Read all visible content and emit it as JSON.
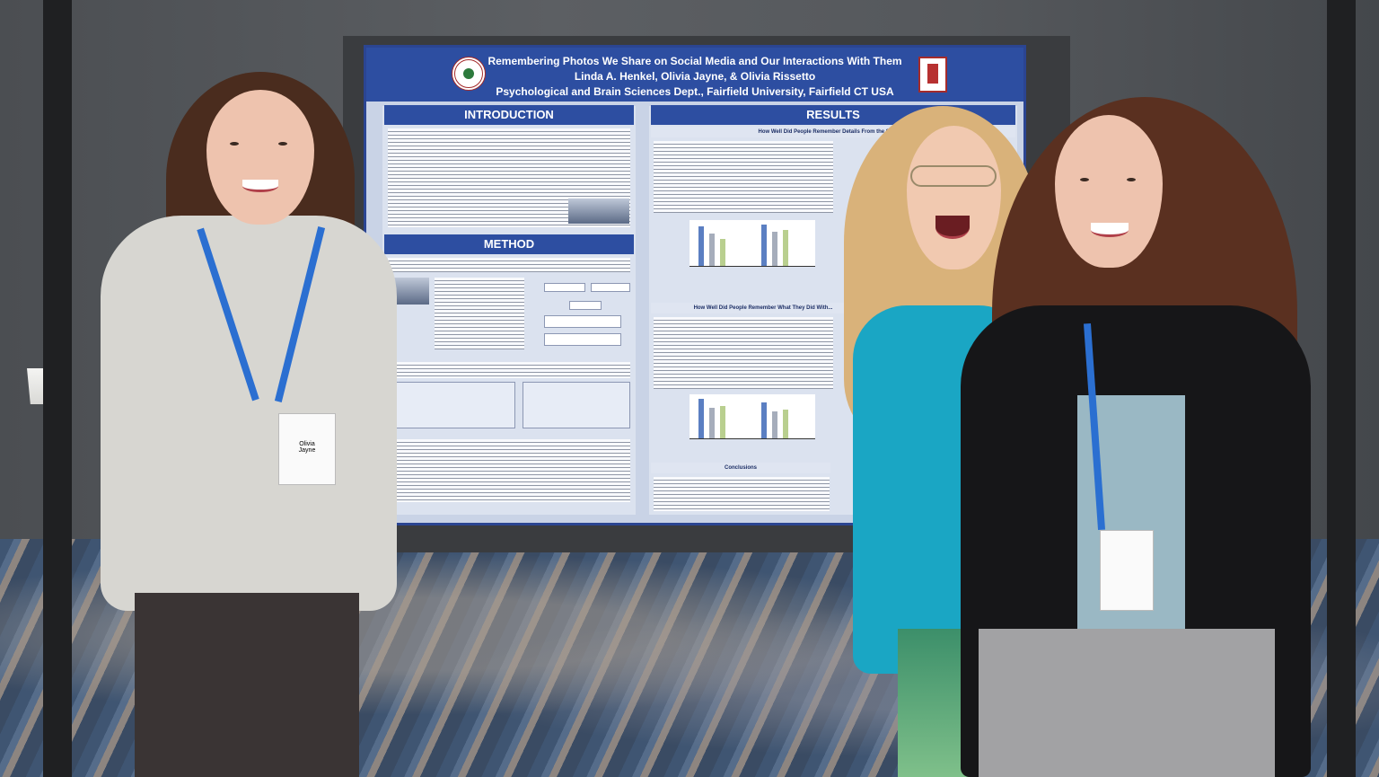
{
  "poster": {
    "title": "Remembering Photos We Share on Social Media and Our Interactions With Them",
    "authors": "Linda A. Henkel, Olivia Jayne, & Olivia Rissetto",
    "affiliation": "Psychological and Brain Sciences Dept., Fairfield University, Fairfield CT USA",
    "sections": {
      "introduction": "INTRODUCTION",
      "method": "METHOD",
      "results": "RESULTS",
      "results_sub_1": "How Well Did People Remember Details From the Scenes?",
      "results_sub_2": "How Well Did People Remember What They Did With...",
      "conclusions": "Conclusions"
    }
  },
  "badges": {
    "left_name_first": "Olivia",
    "left_name_last": "Jayne"
  },
  "colors": {
    "poster_blue": "#2d4ea1",
    "poster_bg": "#c9d3e6",
    "lanyard_blue": "#2b6fd1",
    "teal_blouse": "#1aa6c4",
    "grey_sweater": "#d7d6d1"
  }
}
